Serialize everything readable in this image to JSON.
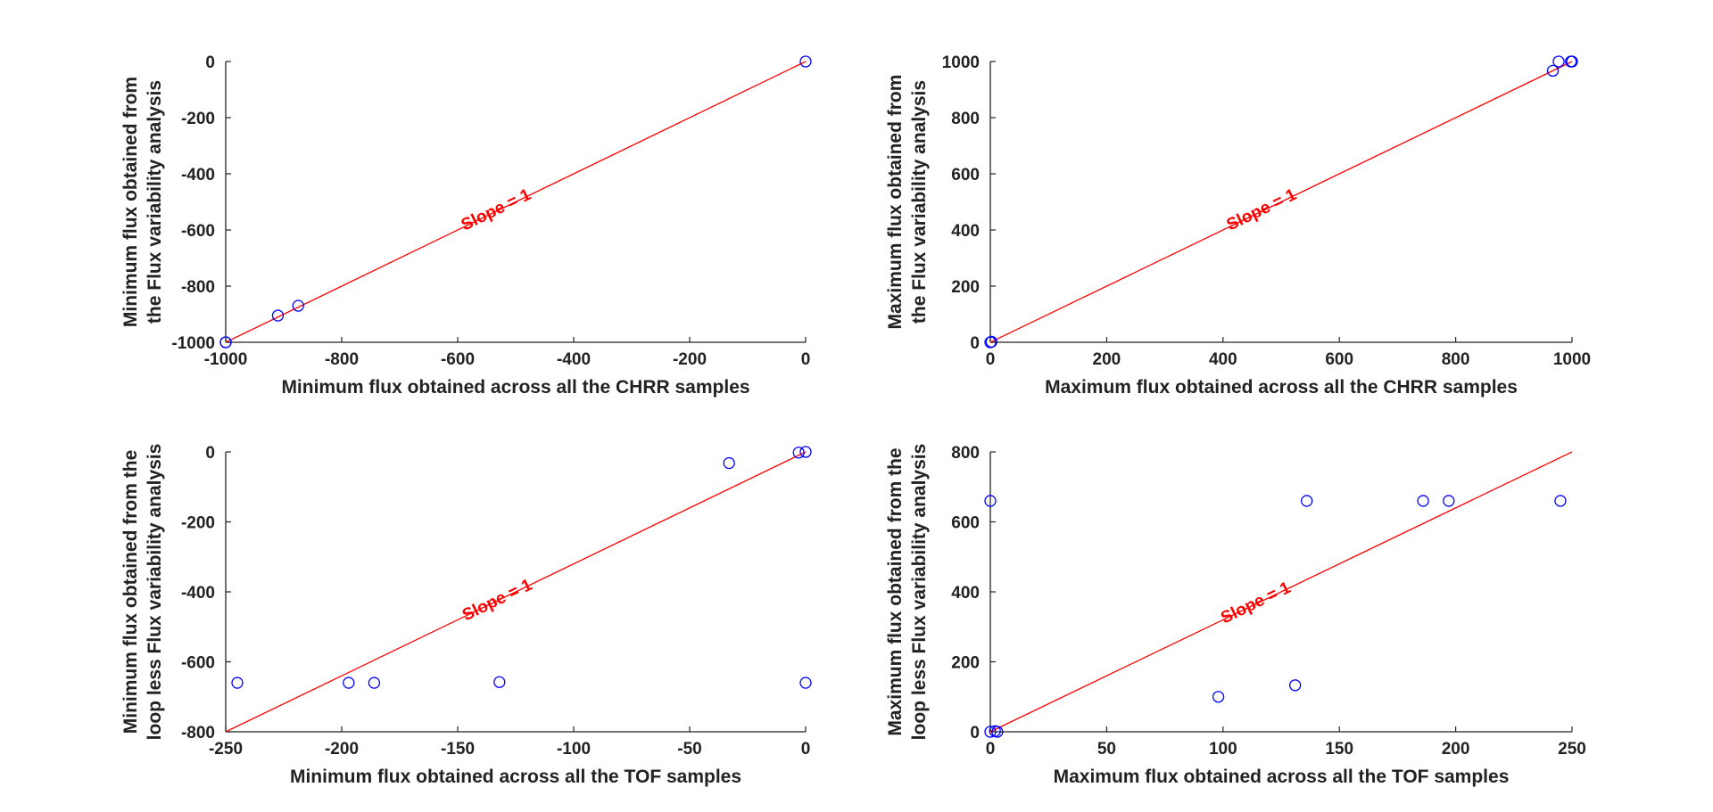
{
  "colors": {
    "points": "#0000ff",
    "line": "#ff0000",
    "axis": "#222222"
  },
  "chart_data": [
    {
      "type": "scatter",
      "xlabel": "Minimum flux obtained across all the CHRR samples",
      "ylabel": [
        "Minimum flux obtained from",
        "the Flux variability analysis"
      ],
      "xlim": [
        -1000,
        0
      ],
      "ylim": [
        -1000,
        0
      ],
      "xticks": [
        -1000,
        -800,
        -600,
        -400,
        -200,
        0
      ],
      "yticks": [
        -1000,
        -800,
        -600,
        -400,
        -200,
        0
      ],
      "series": [
        {
          "x": [
            -1000,
            -1000,
            -910,
            -875,
            0
          ],
          "y": [
            -1000,
            -1000,
            -905,
            -870,
            0
          ]
        }
      ],
      "reference_line": {
        "x": [
          -1000,
          0
        ],
        "y": [
          -1000,
          0
        ]
      },
      "annotation": {
        "text": "Slope = 1",
        "x": -530,
        "y": -545
      }
    },
    {
      "type": "scatter",
      "xlabel": "Maximum flux obtained across all the CHRR samples",
      "ylabel": [
        "Maximum flux obtained from",
        "the Flux variability analysis"
      ],
      "xlim": [
        0,
        1000
      ],
      "ylim": [
        0,
        1000
      ],
      "xticks": [
        0,
        200,
        400,
        600,
        800,
        1000
      ],
      "yticks": [
        0,
        200,
        400,
        600,
        800,
        1000
      ],
      "series": [
        {
          "x": [
            0,
            2,
            967,
            977,
            998,
            1000
          ],
          "y": [
            0,
            2,
            967,
            1000,
            1000,
            1000
          ]
        }
      ],
      "reference_line": {
        "x": [
          0,
          1000
        ],
        "y": [
          0,
          1000
        ]
      },
      "annotation": {
        "text": "Slope = 1",
        "x": 470,
        "y": 455
      }
    },
    {
      "type": "scatter",
      "xlabel": "Minimum flux obtained across all the TOF samples",
      "ylabel": [
        "Minimum flux obtained from the",
        "loop less Flux variability analysis"
      ],
      "xlim": [
        -250,
        0
      ],
      "ylim": [
        -800,
        0
      ],
      "xticks": [
        -250,
        -200,
        -150,
        -100,
        -50,
        0
      ],
      "yticks": [
        -800,
        -600,
        -400,
        -200,
        0
      ],
      "series": [
        {
          "x": [
            -245,
            -197,
            -186,
            -132,
            -33,
            -3,
            0,
            0
          ],
          "y": [
            -660,
            -660,
            -660,
            -658,
            -32,
            -2,
            0,
            -660
          ]
        }
      ],
      "reference_line": {
        "x": [
          -250,
          0
        ],
        "y": [
          -800,
          0
        ]
      },
      "annotation": {
        "text": "Slope = 1",
        "x": -132,
        "y": -437
      }
    },
    {
      "type": "scatter",
      "xlabel": "Maximum flux obtained across all the TOF samples",
      "ylabel": [
        "Maximum flux obtained from the",
        "loop less Flux variability analysis"
      ],
      "xlim": [
        0,
        250
      ],
      "ylim": [
        0,
        800
      ],
      "xticks": [
        0,
        50,
        100,
        150,
        200,
        250
      ],
      "yticks": [
        0,
        200,
        400,
        600,
        800
      ],
      "series": [
        {
          "x": [
            0,
            0,
            2,
            3,
            98,
            131,
            136,
            186,
            197,
            245
          ],
          "y": [
            660,
            0,
            2,
            0,
            100,
            133,
            660,
            660,
            660,
            660
          ]
        }
      ],
      "reference_line": {
        "x": [
          0,
          250
        ],
        "y": [
          0,
          800
        ]
      },
      "annotation": {
        "text": "Slope = 1",
        "x": 115,
        "y": 355
      }
    }
  ]
}
